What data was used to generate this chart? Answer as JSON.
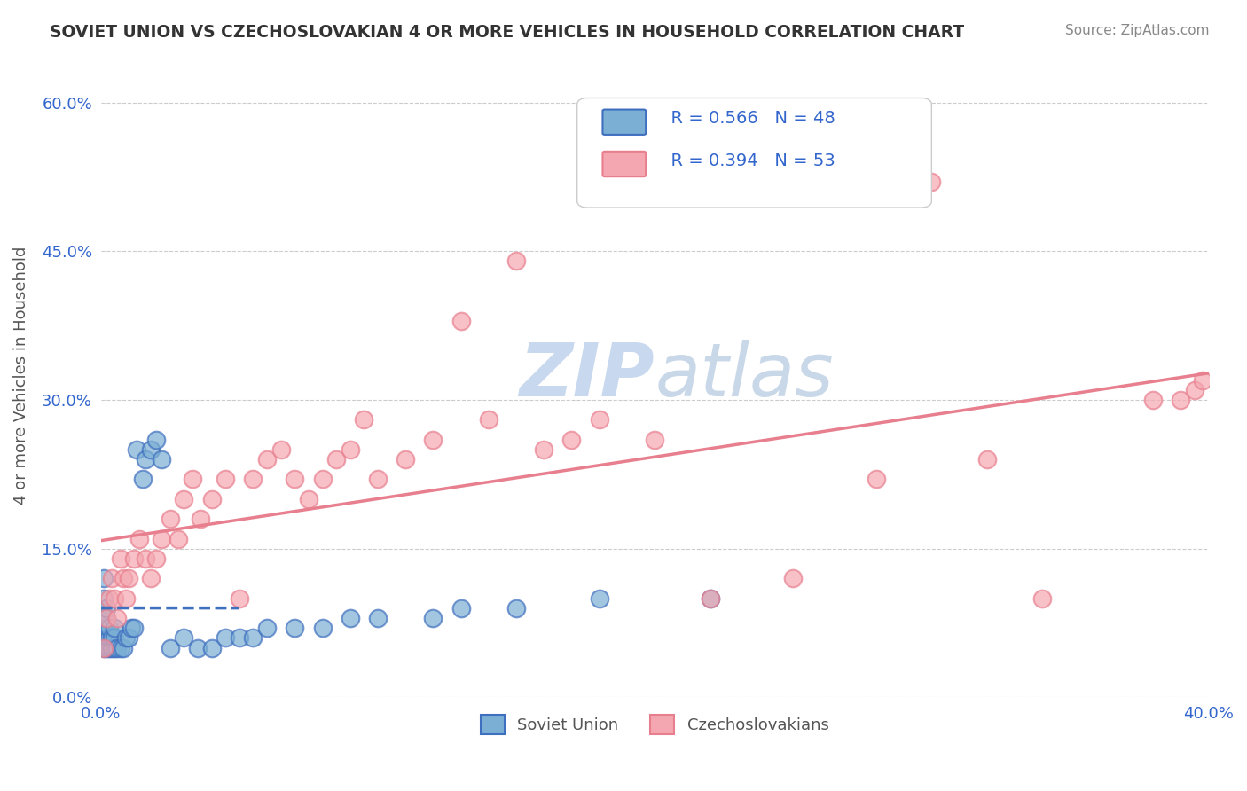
{
  "title": "SOVIET UNION VS CZECHOSLOVAKIAN 4 OR MORE VEHICLES IN HOUSEHOLD CORRELATION CHART",
  "source": "Source: ZipAtlas.com",
  "ylabel": "4 or more Vehicles in Household",
  "xlabel_bottom_left": "0.0%",
  "xlabel_bottom_right": "40.0%",
  "legend1_label": "Soviet Union",
  "legend2_label": "Czechoslovakians",
  "r1": 0.566,
  "n1": 48,
  "r2": 0.394,
  "n2": 53,
  "color_soviet": "#7bafd4",
  "color_czech": "#f4a7b0",
  "color_soviet_line": "#3f6fbf",
  "color_czech_line": "#e87f8e",
  "color_watermark_zip": "#c8d8ee",
  "color_watermark_atlas": "#c8d8e8",
  "yticks": [
    0.0,
    0.15,
    0.3,
    0.45,
    0.6
  ],
  "ytick_labels": [
    "0.0%",
    "15.0%",
    "30.0%",
    "45.0%",
    "60.0%"
  ],
  "xlim": [
    0.0,
    0.4
  ],
  "ylim": [
    0.0,
    0.65
  ],
  "soviet_x": [
    0.001,
    0.001,
    0.001,
    0.001,
    0.001,
    0.002,
    0.002,
    0.002,
    0.002,
    0.002,
    0.003,
    0.003,
    0.003,
    0.004,
    0.004,
    0.005,
    0.005,
    0.005,
    0.006,
    0.007,
    0.008,
    0.009,
    0.01,
    0.011,
    0.012,
    0.013,
    0.015,
    0.016,
    0.018,
    0.02,
    0.022,
    0.025,
    0.03,
    0.035,
    0.04,
    0.045,
    0.05,
    0.055,
    0.06,
    0.07,
    0.08,
    0.09,
    0.1,
    0.12,
    0.13,
    0.15,
    0.18,
    0.22
  ],
  "soviet_y": [
    0.05,
    0.07,
    0.08,
    0.1,
    0.12,
    0.05,
    0.06,
    0.07,
    0.08,
    0.09,
    0.05,
    0.06,
    0.07,
    0.05,
    0.06,
    0.05,
    0.06,
    0.07,
    0.05,
    0.05,
    0.05,
    0.06,
    0.06,
    0.07,
    0.07,
    0.25,
    0.22,
    0.24,
    0.25,
    0.26,
    0.24,
    0.05,
    0.06,
    0.05,
    0.05,
    0.06,
    0.06,
    0.06,
    0.07,
    0.07,
    0.07,
    0.08,
    0.08,
    0.08,
    0.09,
    0.09,
    0.1,
    0.1
  ],
  "czech_x": [
    0.001,
    0.002,
    0.003,
    0.004,
    0.005,
    0.006,
    0.007,
    0.008,
    0.009,
    0.01,
    0.012,
    0.014,
    0.016,
    0.018,
    0.02,
    0.022,
    0.025,
    0.028,
    0.03,
    0.033,
    0.036,
    0.04,
    0.045,
    0.05,
    0.055,
    0.06,
    0.065,
    0.07,
    0.075,
    0.08,
    0.085,
    0.09,
    0.095,
    0.1,
    0.11,
    0.12,
    0.13,
    0.14,
    0.15,
    0.16,
    0.17,
    0.18,
    0.2,
    0.22,
    0.25,
    0.28,
    0.3,
    0.32,
    0.34,
    0.38,
    0.39,
    0.395,
    0.398
  ],
  "czech_y": [
    0.05,
    0.08,
    0.1,
    0.12,
    0.1,
    0.08,
    0.14,
    0.12,
    0.1,
    0.12,
    0.14,
    0.16,
    0.14,
    0.12,
    0.14,
    0.16,
    0.18,
    0.16,
    0.2,
    0.22,
    0.18,
    0.2,
    0.22,
    0.1,
    0.22,
    0.24,
    0.25,
    0.22,
    0.2,
    0.22,
    0.24,
    0.25,
    0.28,
    0.22,
    0.24,
    0.26,
    0.38,
    0.28,
    0.44,
    0.25,
    0.26,
    0.28,
    0.26,
    0.1,
    0.12,
    0.22,
    0.52,
    0.24,
    0.1,
    0.3,
    0.3,
    0.31,
    0.32
  ]
}
